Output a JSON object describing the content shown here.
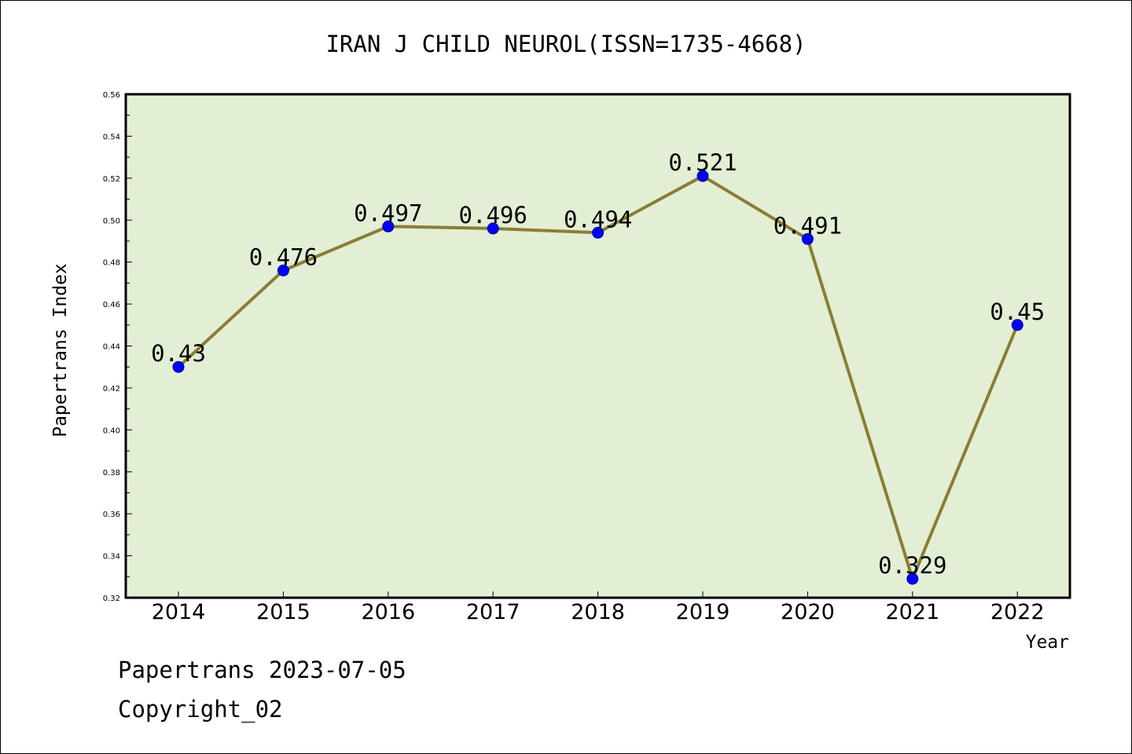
{
  "chart_data": {
    "type": "line",
    "title": "IRAN J CHILD NEUROL(ISSN=1735-4668)",
    "xlabel": "Year",
    "ylabel": "Papertrans Index",
    "categories": [
      "2014",
      "2015",
      "2016",
      "2017",
      "2018",
      "2019",
      "2020",
      "2021",
      "2022"
    ],
    "series": [
      {
        "values": [
          0.43,
          0.476,
          0.497,
          0.496,
          0.494,
          0.521,
          0.491,
          0.329,
          0.45
        ],
        "data_labels": [
          "0.43",
          "0.476",
          "0.497",
          "0.496",
          "0.494",
          "0.521",
          "0.491",
          "0.329",
          "0.45"
        ],
        "line_color": "#8b7d35",
        "marker_color": "#0000ff"
      }
    ],
    "ylim": [
      0.32,
      0.56
    ],
    "yticks": [
      "0.32",
      "0.34",
      "0.36",
      "0.38",
      "0.40",
      "0.42",
      "0.44",
      "0.46",
      "0.48",
      "0.50",
      "0.52",
      "0.54",
      "0.56"
    ],
    "grid": false,
    "legend": "none",
    "plot_background": "#e2efd5"
  },
  "footer": {
    "line1": "Papertrans 2023-07-05",
    "line2": "Copyright_02"
  }
}
